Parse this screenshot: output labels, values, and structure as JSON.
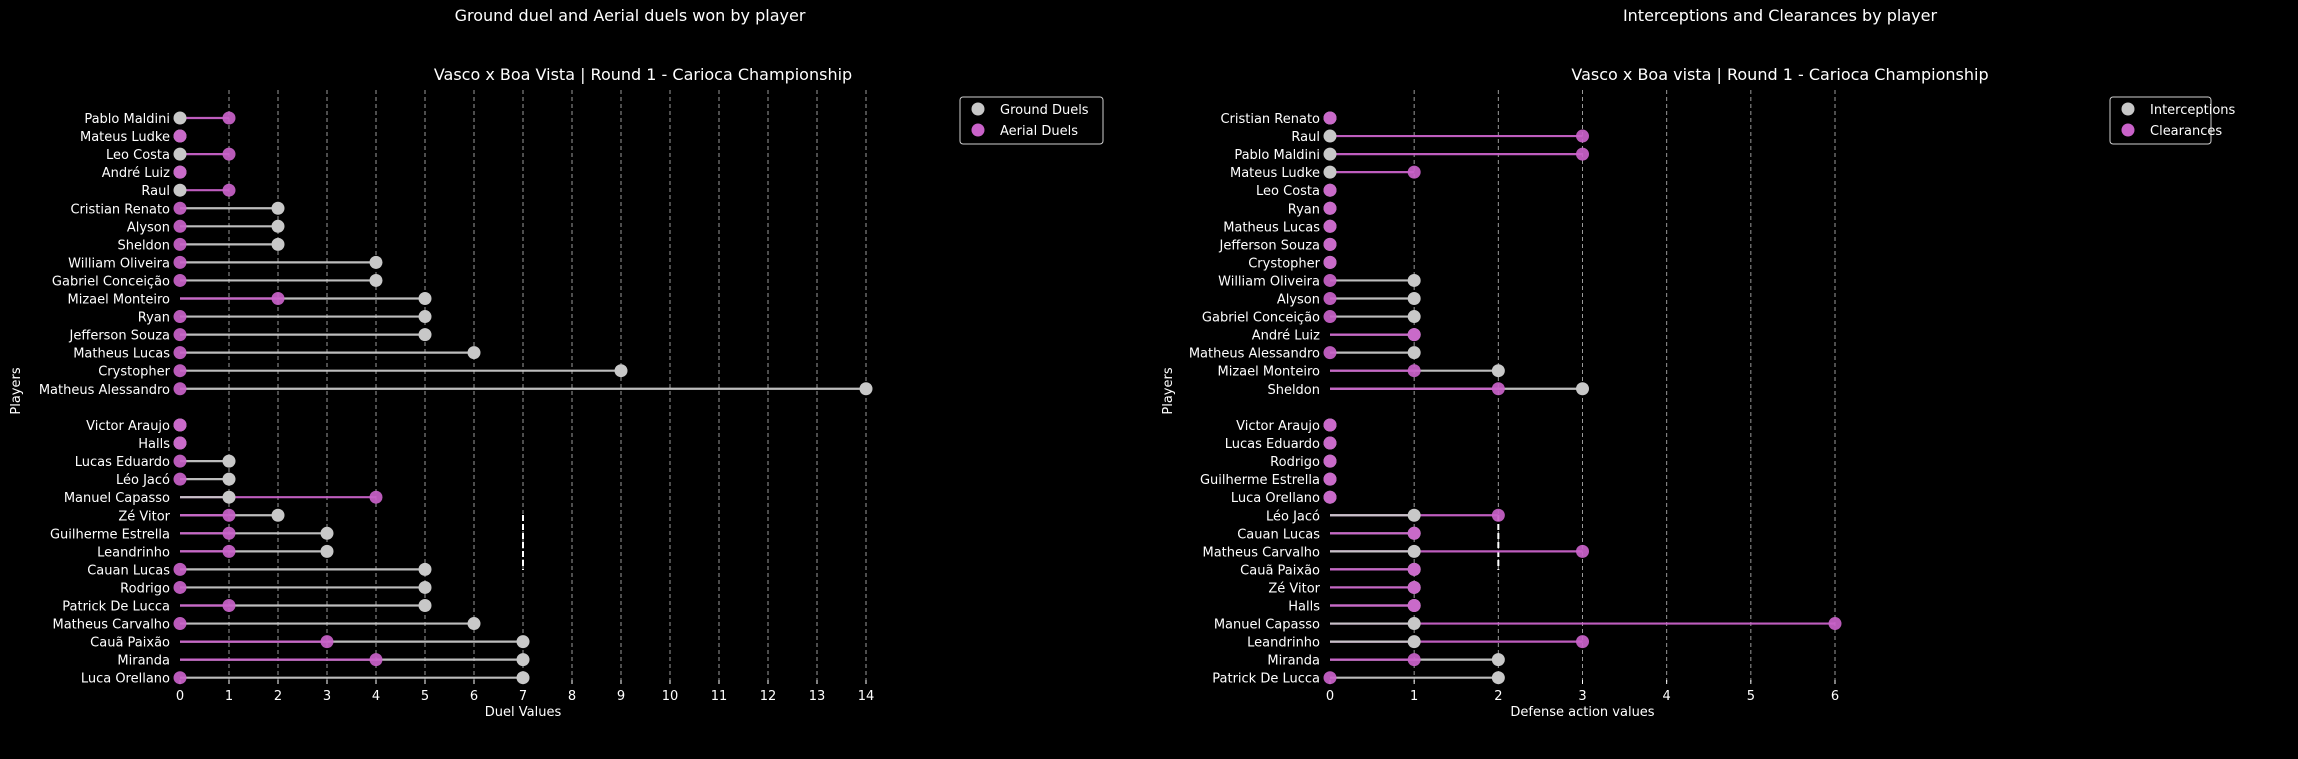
{
  "chart_data": [
    {
      "type": "lollipop",
      "suptitle": "Ground duel and Aerial duels won by player",
      "title": "Vasco x Boa Vista | Round 1 - Carioca Championship",
      "xlabel": "Duel Values",
      "ylabel": "Players",
      "xlim": [
        0,
        14
      ],
      "xticks": [
        "0",
        "1",
        "2",
        "3",
        "4",
        "5",
        "6",
        "7",
        "8",
        "9",
        "10",
        "11",
        "12",
        "13",
        "14"
      ],
      "grid": "vertical dashed",
      "legend_position": "top-right",
      "series_names": [
        "Ground Duels",
        "Aerial Duels"
      ],
      "series_colors": [
        "#c8c8c8",
        "#c962c9"
      ],
      "groups": [
        {
          "players": [
            "Pablo Maldini",
            "Mateus Ludke",
            "Leo Costa",
            "André Luiz",
            "Raul",
            "Cristian Renato",
            "Alyson",
            "Sheldon",
            "William Oliveira",
            "Gabriel Conceição",
            "Mizael Monteiro",
            "Ryan",
            "Jefferson Souza",
            "Matheus Lucas",
            "Crystopher",
            "Matheus Alessandro"
          ],
          "series": [
            {
              "name": "Ground Duels",
              "values": [
                0,
                0,
                0,
                0,
                0,
                2,
                2,
                2,
                4,
                4,
                5,
                5,
                5,
                6,
                9,
                14
              ]
            },
            {
              "name": "Aerial Duels",
              "values": [
                1,
                0,
                1,
                0,
                1,
                0,
                0,
                0,
                0,
                0,
                2,
                0,
                0,
                0,
                0,
                0
              ]
            }
          ]
        },
        {
          "players": [
            "Victor Araujo",
            "Halls",
            "Lucas Eduardo",
            "Léo Jacó",
            "Manuel Capasso",
            "Zé Vitor",
            "Guilherme Estrella",
            "Leandrinho",
            "Cauan Lucas",
            "Rodrigo",
            "Patrick De Lucca",
            "Matheus Carvalho",
            "Cauã Paixão",
            "Miranda",
            "Luca Orellano"
          ],
          "series": [
            {
              "name": "Ground Duels",
              "values": [
                0,
                0,
                1,
                1,
                1,
                2,
                3,
                3,
                5,
                5,
                5,
                6,
                7,
                7,
                7
              ]
            },
            {
              "name": "Aerial Duels",
              "values": [
                0,
                0,
                0,
                0,
                4,
                1,
                1,
                1,
                0,
                0,
                1,
                0,
                3,
                4,
                0
              ]
            }
          ]
        }
      ],
      "divider_value": 7
    },
    {
      "type": "lollipop",
      "suptitle": "Interceptions and Clearances by player",
      "title": "Vasco x Boa vista | Round 1 - Carioca Championship",
      "xlabel": "Defense action values",
      "ylabel": "Players",
      "xlim": [
        0,
        6
      ],
      "xticks": [
        "0",
        "1",
        "2",
        "3",
        "4",
        "5",
        "6"
      ],
      "grid": "vertical dashed",
      "legend_position": "top-right",
      "series_names": [
        "Interceptions",
        "Clearances"
      ],
      "series_colors": [
        "#c8c8c8",
        "#c962c9"
      ],
      "groups": [
        {
          "players": [
            "Cristian Renato",
            "Raul",
            "Pablo Maldini",
            "Mateus Ludke",
            "Leo Costa",
            "Ryan",
            "Matheus Lucas",
            "Jefferson Souza",
            "Crystopher",
            "William Oliveira",
            "Alyson",
            "Gabriel Conceição",
            "André Luiz",
            "Matheus Alessandro",
            "Mizael Monteiro",
            "Sheldon"
          ],
          "series": [
            {
              "name": "Interceptions",
              "values": [
                0,
                0,
                0,
                0,
                0,
                0,
                0,
                0,
                0,
                1,
                1,
                1,
                1,
                1,
                2,
                3
              ]
            },
            {
              "name": "Clearances",
              "values": [
                0,
                3,
                3,
                1,
                0,
                0,
                0,
                0,
                0,
                0,
                0,
                0,
                1,
                0,
                1,
                2
              ]
            }
          ]
        },
        {
          "players": [
            "Victor Araujo",
            "Lucas Eduardo",
            "Rodrigo",
            "Guilherme Estrella",
            "Luca Orellano",
            "Léo Jacó",
            "Cauan Lucas",
            "Matheus Carvalho",
            "Cauã Paixão",
            "Zé Vitor",
            "Halls",
            "Manuel Capasso",
            "Leandrinho",
            "Miranda",
            "Patrick De Lucca"
          ],
          "series": [
            {
              "name": "Interceptions",
              "values": [
                0,
                0,
                0,
                0,
                0,
                1,
                1,
                1,
                1,
                1,
                1,
                1,
                1,
                2,
                2
              ]
            },
            {
              "name": "Clearances",
              "values": [
                0,
                0,
                0,
                0,
                0,
                2,
                1,
                3,
                1,
                1,
                1,
                6,
                3,
                1,
                0
              ]
            }
          ]
        }
      ],
      "divider_value": 2
    }
  ]
}
